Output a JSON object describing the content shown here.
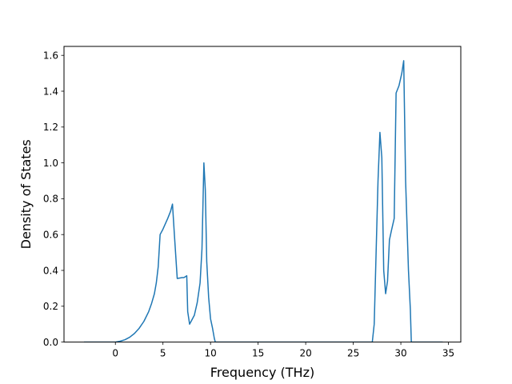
{
  "chart_data": {
    "type": "line",
    "title": "",
    "xlabel": "Frequency (THz)",
    "ylabel": "Density of States",
    "xlim": [
      -5.4,
      36.3
    ],
    "ylim": [
      0.0,
      1.65
    ],
    "xticks": [
      0,
      5,
      10,
      15,
      20,
      25,
      30,
      35
    ],
    "yticks": [
      0.0,
      0.2,
      0.4,
      0.6,
      0.8,
      1.0,
      1.2,
      1.4,
      1.6
    ],
    "xtick_labels": [
      "0",
      "5",
      "10",
      "15",
      "20",
      "25",
      "30",
      "35"
    ],
    "ytick_labels": [
      "0.0",
      "0.2",
      "0.4",
      "0.6",
      "0.8",
      "1.0",
      "1.2",
      "1.4",
      "1.6"
    ],
    "grid": false,
    "legend": "none",
    "series": [
      {
        "color": "#1f77b4",
        "x": [
          -3.3,
          0.0,
          0.5,
          1.0,
          1.5,
          2.0,
          2.5,
          3.0,
          3.5,
          3.8,
          4.1,
          4.3,
          4.5,
          4.7,
          5.0,
          5.5,
          5.8,
          6.0,
          6.2,
          6.5,
          7.0,
          7.2,
          7.5,
          7.6,
          7.8,
          8.0,
          8.3,
          8.6,
          8.9,
          9.1,
          9.3,
          9.45,
          9.6,
          9.8,
          10.0,
          10.2,
          10.4,
          10.5,
          12.0,
          15.0,
          20.0,
          25.0,
          27.0,
          27.2,
          27.4,
          27.6,
          27.8,
          28.0,
          28.2,
          28.4,
          28.6,
          28.8,
          29.0,
          29.3,
          29.5,
          29.8,
          30.1,
          30.3,
          30.5,
          30.8,
          31.0,
          31.1,
          31.3,
          32.0,
          34.4
        ],
        "y": [
          0.0,
          0.0,
          0.005,
          0.013,
          0.027,
          0.048,
          0.077,
          0.116,
          0.17,
          0.215,
          0.27,
          0.33,
          0.42,
          0.6,
          0.63,
          0.69,
          0.73,
          0.77,
          0.6,
          0.355,
          0.36,
          0.36,
          0.37,
          0.17,
          0.1,
          0.12,
          0.15,
          0.22,
          0.33,
          0.52,
          1.0,
          0.85,
          0.45,
          0.25,
          0.13,
          0.08,
          0.02,
          0.0,
          0.0,
          0.0,
          0.0,
          0.0,
          0.0,
          0.1,
          0.5,
          0.9,
          1.17,
          1.03,
          0.4,
          0.27,
          0.34,
          0.57,
          0.62,
          0.69,
          1.39,
          1.43,
          1.5,
          1.57,
          0.9,
          0.4,
          0.18,
          0.0,
          0.0,
          0.0,
          0.0
        ]
      }
    ]
  }
}
